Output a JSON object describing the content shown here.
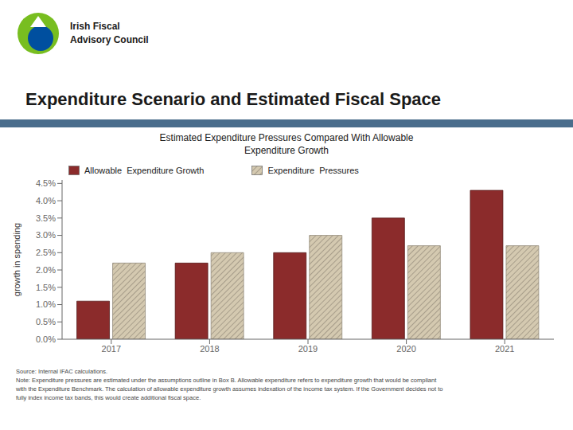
{
  "chart_data": {
    "type": "bar",
    "title": "Expenditure Scenario and Estimated Fiscal Space",
    "subtitle": "Estimated Expenditure Pressures Compared With Allowable\nExpenditure Growth",
    "categories": [
      "2017",
      "2018",
      "2019",
      "2020",
      "2021"
    ],
    "series": [
      {
        "name": "Allowable  Expenditure Growth",
        "color": "#8B2B2B",
        "values": [
          0.011,
          0.022,
          0.025,
          0.035,
          0.043
        ]
      },
      {
        "name": "Expenditure  Pressures",
        "color": "#D4C9B0",
        "values": [
          0.022,
          0.025,
          0.03,
          0.027,
          0.027
        ]
      }
    ],
    "ylabel": "growth in spending",
    "ylim": [
      0,
      0.046
    ],
    "yticks": [
      {
        "value": 0.0,
        "label": "0.0%"
      },
      {
        "value": 0.005,
        "label": "0.5%"
      },
      {
        "value": 0.01,
        "label": "1.0%"
      },
      {
        "value": 0.015,
        "label": "1.5%"
      },
      {
        "value": 0.02,
        "label": "2.0%"
      },
      {
        "value": 0.025,
        "label": "2.5%"
      },
      {
        "value": 0.03,
        "label": "3.0%"
      },
      {
        "value": 0.035,
        "label": "3.5%"
      },
      {
        "value": 0.04,
        "label": "4.0%"
      },
      {
        "value": 0.045,
        "label": "4.5%"
      }
    ],
    "legend": "upper left",
    "grid": false,
    "annotations": [
      "Irish Fiscal\nAdvisory Council",
      "Source: Internal IFAC calculations.\nNote: Expenditure pressures are estimated under the assumptions outline in Box B. Allowable expenditure refers to expenditure growth that would be compliant\nwith the Expenditure Benchmark. The calculation of allowable expenditure growth assumes indexation of the income tax system. If the Government decides not to\nfully index income tax bands, this would create additional fiscal space."
    ]
  }
}
